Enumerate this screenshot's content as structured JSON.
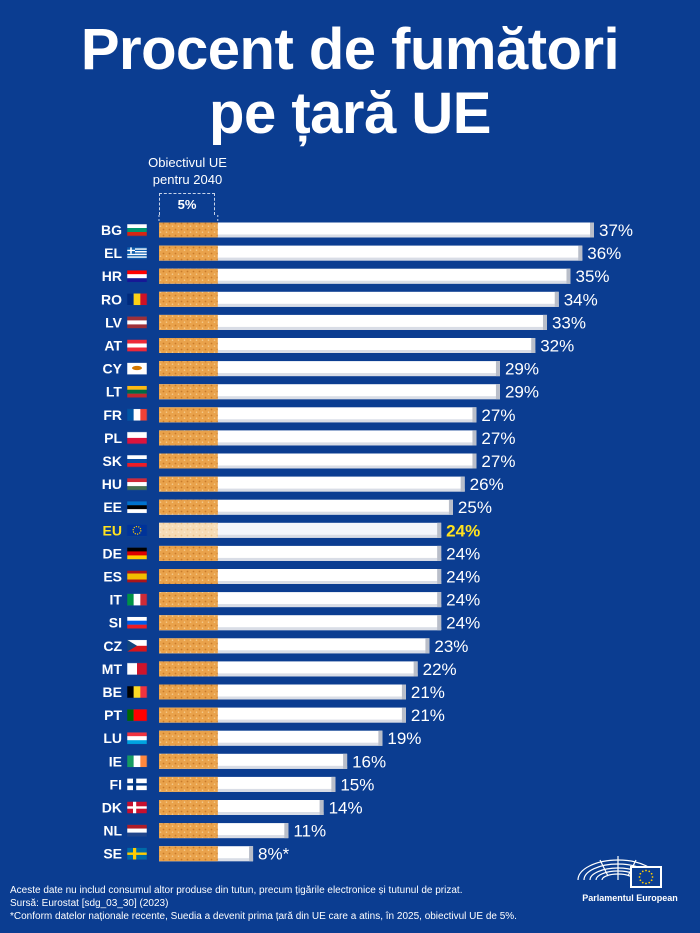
{
  "title_line1": "Procent de fumători",
  "title_line2": "pe țară UE",
  "target": {
    "label_line1": "Obiectivul UE",
    "label_line2": "pentru 2040",
    "value_label": "5%"
  },
  "chart_data": {
    "type": "bar",
    "orientation": "horizontal",
    "title": "Procent de fumători pe țară UE",
    "xlim": [
      0,
      40
    ],
    "target_value": 5,
    "highlight_category": "EU",
    "highlight_color": "#ffe21f",
    "categories": [
      "BG",
      "EL",
      "HR",
      "RO",
      "LV",
      "AT",
      "CY",
      "LT",
      "FR",
      "PL",
      "SK",
      "HU",
      "EE",
      "EU",
      "DE",
      "ES",
      "IT",
      "SI",
      "CZ",
      "MT",
      "BE",
      "PT",
      "LU",
      "IE",
      "FI",
      "DK",
      "NL",
      "SE"
    ],
    "values": [
      37,
      36,
      35,
      34,
      33,
      32,
      29,
      29,
      27,
      27,
      27,
      26,
      25,
      24,
      24,
      24,
      24,
      24,
      23,
      22,
      21,
      21,
      19,
      16,
      15,
      14,
      11,
      8
    ],
    "value_labels": [
      "37%",
      "36%",
      "35%",
      "34%",
      "33%",
      "32%",
      "29%",
      "29%",
      "27%",
      "27%",
      "27%",
      "26%",
      "25%",
      "24%",
      "24%",
      "24%",
      "24%",
      "24%",
      "23%",
      "22%",
      "21%",
      "21%",
      "19%",
      "16%",
      "15%",
      "14%",
      "11%",
      "8%*"
    ]
  },
  "footnotes": {
    "line1": "Aceste date nu includ consumul altor produse din tutun, precum țigările electronice și tutunul de prizat.",
    "line2": "Sursă: Eurostat [sdg_03_30] (2023)",
    "line3": "*Conform datelor naționale recente, Suedia a devenit prima țară din UE care a atins, în 2025, obiectivul UE de 5%."
  },
  "logo": {
    "text": "Parlamentul European"
  },
  "flags": {
    "BG": [
      "#ffffff",
      "#00966e",
      "#d62612"
    ],
    "EL": "greece",
    "HR": [
      "#ff0000",
      "#ffffff",
      "#171796"
    ],
    "RO": "v:#002b7f,#fcd116,#ce1126",
    "LV": [
      "#9e3039",
      "#ffffff",
      "#9e3039"
    ],
    "AT": [
      "#ed2939",
      "#ffffff",
      "#ed2939"
    ],
    "CY": "cyprus",
    "LT": [
      "#fdb913",
      "#006a44",
      "#c1272d"
    ],
    "FR": "v:#0055a4,#ffffff,#ef4135",
    "PL": [
      "#ffffff",
      "#dc143c"
    ],
    "SK": [
      "#ffffff",
      "#0b4ea2",
      "#ee1c25"
    ],
    "HU": [
      "#ce2939",
      "#ffffff",
      "#477050"
    ],
    "EE": [
      "#0072ce",
      "#000000",
      "#ffffff"
    ],
    "EU": "eu",
    "DE": [
      "#000000",
      "#dd0000",
      "#ffce00"
    ],
    "ES": [
      "#aa151b",
      "#f1bf00",
      "#f1bf00",
      "#aa151b"
    ],
    "IT": "v:#009246,#ffffff,#ce2b37",
    "SI": [
      "#ffffff",
      "#005ce6",
      "#ed1c24"
    ],
    "CZ": "czech",
    "MT": "v:#ffffff,#cf142b",
    "BE": "v:#000000,#fdda24,#ef3340",
    "PT": "v:#006600,#ff0000,#ff0000",
    "LU": [
      "#ef3340",
      "#ffffff",
      "#00a3e0"
    ],
    "IE": "v:#169b62,#ffffff,#ff883e",
    "FI": "nordic:#ffffff,#003580",
    "DK": "nordic:#c8102e,#ffffff",
    "NL": [
      "#ae1c28",
      "#ffffff",
      "#21468b"
    ],
    "SE": "nordic:#006aa7,#fecc00"
  }
}
